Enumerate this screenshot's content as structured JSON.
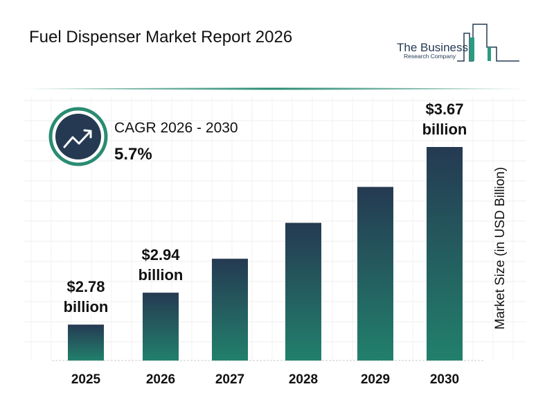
{
  "header": {
    "title": "Fuel Dispenser Market Report 2026",
    "logo_line1": "The Business",
    "logo_line2": "Research Company"
  },
  "cagr": {
    "label": "CAGR 2026 - 2030",
    "value": "5.7%",
    "icon": "trending-up-icon"
  },
  "colors": {
    "bar_top": "#253a52",
    "bar_bottom": "#22806c",
    "accent": "#2a8b72",
    "icon_bg": "#253a52"
  },
  "chart_data": {
    "type": "bar",
    "categories": [
      "2025",
      "2026",
      "2027",
      "2028",
      "2029",
      "2030"
    ],
    "values": [
      2.78,
      2.94,
      3.11,
      3.29,
      3.47,
      3.67
    ],
    "data_labels": [
      {
        "amount": "$2.78",
        "unit": "billion"
      },
      {
        "amount": "$2.94",
        "unit": "billion"
      },
      null,
      null,
      null,
      {
        "amount": "$3.67",
        "unit": "billion"
      }
    ],
    "ylabel": "Market Size (in USD Billion)",
    "xlabel": "",
    "ylim": [
      2.6,
      3.7
    ],
    "grid": true
  }
}
